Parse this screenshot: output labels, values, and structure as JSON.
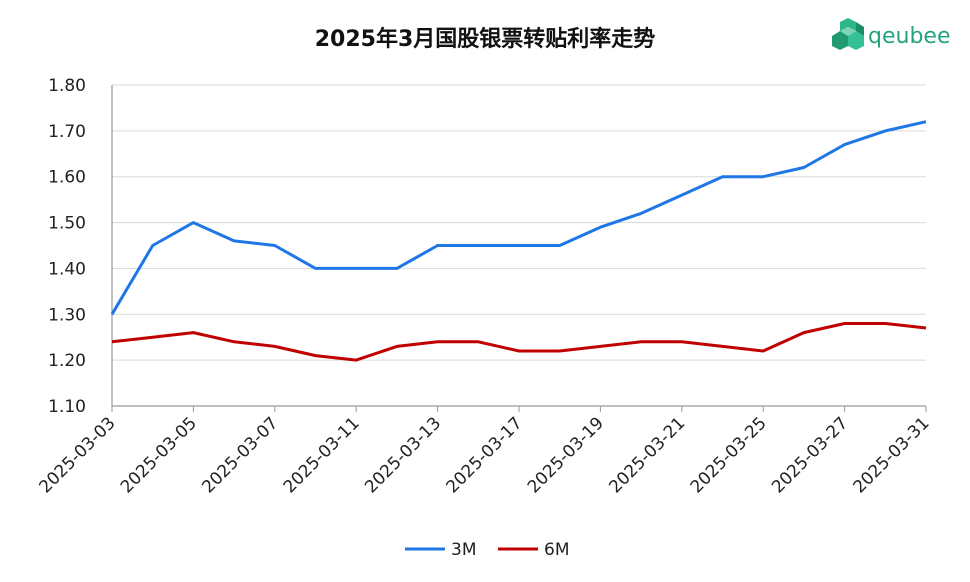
{
  "chart_data": {
    "type": "line",
    "title": "2025年3月国股银票转贴利率走势",
    "brand": "qeubee",
    "categories": [
      "2025-03-03",
      "2025-03-04",
      "2025-03-05",
      "2025-03-06",
      "2025-03-07",
      "2025-03-10",
      "2025-03-11",
      "2025-03-12",
      "2025-03-13",
      "2025-03-14",
      "2025-03-17",
      "2025-03-18",
      "2025-03-19",
      "2025-03-20",
      "2025-03-21",
      "2025-03-24",
      "2025-03-25",
      "2025-03-26",
      "2025-03-27",
      "2025-03-28",
      "2025-03-31"
    ],
    "xtick_labels": [
      "2025-03-03",
      "2025-03-05",
      "2025-03-07",
      "2025-03-11",
      "2025-03-13",
      "2025-03-17",
      "2025-03-19",
      "2025-03-21",
      "2025-03-25",
      "2025-03-27",
      "2025-03-31"
    ],
    "series": [
      {
        "name": "3M",
        "color": "#1f77e6",
        "values": [
          1.3,
          1.45,
          1.5,
          1.46,
          1.45,
          1.4,
          1.4,
          1.4,
          1.45,
          1.45,
          1.45,
          1.45,
          1.49,
          1.52,
          1.56,
          1.6,
          1.6,
          1.62,
          1.67,
          1.7,
          1.72
        ]
      },
      {
        "name": "6M",
        "color": "#c00000",
        "values": [
          1.24,
          1.25,
          1.26,
          1.24,
          1.23,
          1.21,
          1.2,
          1.23,
          1.24,
          1.24,
          1.22,
          1.22,
          1.23,
          1.24,
          1.24,
          1.23,
          1.22,
          1.26,
          1.28,
          1.28,
          1.27
        ]
      }
    ],
    "ylim": [
      1.1,
      1.8
    ],
    "yticks": [
      "1.10",
      "1.20",
      "1.30",
      "1.40",
      "1.50",
      "1.60",
      "1.70",
      "1.80"
    ],
    "grid": "horizontal",
    "legend": "bottom-center"
  }
}
